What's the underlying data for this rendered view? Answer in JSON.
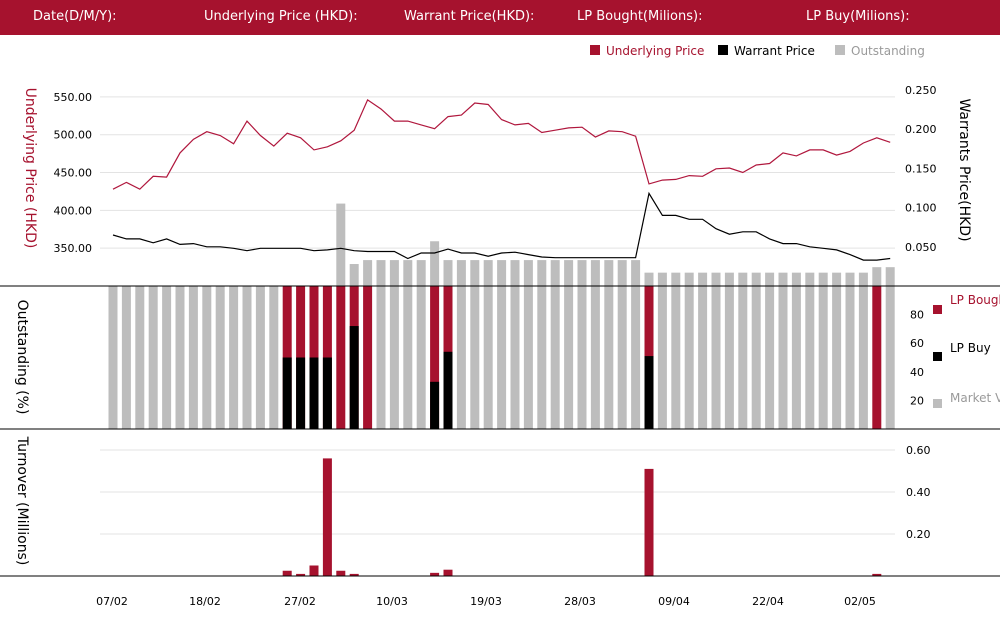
{
  "header": {
    "date_label": "Date(D/M/Y):",
    "underlying_label": "Underlying Price (HKD):",
    "warrant_label": "Warrant  Price(HKD):",
    "lp_bought_label": "LP Bought(Milions):",
    "lp_buy_label": "LP Buy(Milions):"
  },
  "colors": {
    "header_bg": "#a6122e",
    "underlying": "#b0173d",
    "warrant": "#000000",
    "outstanding": "#bdbdbd",
    "lp_bought": "#a6122e",
    "lp_buy": "#000000"
  },
  "chart_data": [
    {
      "type": "line",
      "legend": [
        "Underlying Price",
        "Warrant  Price",
        "Outstanding"
      ],
      "ylabel_left": "Underlying Price (HKD)",
      "ylabel_right": "Warrants  Price(HKD)",
      "ylim_left": [
        300,
        575
      ],
      "ylim_right": [
        0.0,
        0.265
      ],
      "yticks_left": [
        "550.00",
        "500.00",
        "450.00",
        "400.00",
        "350.00"
      ],
      "yticks_right": [
        "0.250",
        "0.200",
        "0.150",
        "0.100",
        "0.050"
      ],
      "series": [
        {
          "name": "Underlying Price",
          "axis": "left",
          "values": [
            428,
            437,
            428,
            445,
            444,
            476,
            494,
            504,
            499,
            488,
            518,
            499,
            485,
            502,
            496,
            480,
            484,
            492,
            506,
            546,
            534,
            518,
            518,
            513,
            508,
            524,
            526,
            542,
            540,
            520,
            513,
            515,
            503,
            506,
            509,
            510,
            497,
            505,
            504,
            498,
            435,
            440,
            441,
            446,
            445,
            455,
            456,
            450,
            460,
            462,
            476,
            472,
            480,
            480,
            473,
            478,
            489,
            496,
            490
          ]
        },
        {
          "name": "Warrant  Price",
          "axis": "right",
          "values": [
            0.065,
            0.06,
            0.06,
            0.055,
            0.06,
            0.053,
            0.054,
            0.05,
            0.05,
            0.048,
            0.045,
            0.048,
            0.048,
            0.048,
            0.048,
            0.045,
            0.046,
            0.048,
            0.045,
            0.044,
            0.044,
            0.044,
            0.035,
            0.042,
            0.042,
            0.047,
            0.042,
            0.042,
            0.038,
            0.042,
            0.043,
            0.04,
            0.037,
            0.036,
            0.036,
            0.036,
            0.036,
            0.036,
            0.036,
            0.036,
            0.118,
            0.09,
            0.09,
            0.085,
            0.085,
            0.073,
            0.066,
            0.069,
            0.069,
            0.06,
            0.054,
            0.054,
            0.05,
            0.048,
            0.046,
            0.04,
            0.033,
            0.033,
            0.035
          ]
        },
        {
          "name": "Outstanding",
          "axis": "right",
          "type": "bar",
          "values": [
            0,
            0,
            0,
            0,
            0,
            0,
            0,
            0,
            0,
            0,
            0,
            0,
            0,
            0,
            0,
            0,
            0,
            0.105,
            0.028,
            0.033,
            0.033,
            0.033,
            0.033,
            0.033,
            0.057,
            0.033,
            0.033,
            0.033,
            0.033,
            0.033,
            0.033,
            0.033,
            0.033,
            0.033,
            0.033,
            0.033,
            0.033,
            0.033,
            0.033,
            0.033,
            0.017,
            0.017,
            0.017,
            0.017,
            0.017,
            0.017,
            0.017,
            0.017,
            0.017,
            0.017,
            0.017,
            0.017,
            0.017,
            0.017,
            0.017,
            0.017,
            0.017,
            0.024,
            0.024
          ]
        }
      ]
    },
    {
      "type": "bar",
      "ylabel": "Outstanding (%)",
      "ylim": [
        0,
        100
      ],
      "yticks": [
        "80",
        "60",
        "40",
        "20"
      ],
      "legend": [
        "LP Bought",
        "LP Buy",
        "Market Volume"
      ],
      "series": [
        {
          "name": "Market Volume",
          "values": [
            100,
            100,
            100,
            100,
            100,
            100,
            100,
            100,
            100,
            100,
            100,
            100,
            100,
            100,
            100,
            100,
            100,
            100,
            100,
            100,
            100,
            100,
            100,
            100,
            100,
            100,
            100,
            100,
            100,
            100,
            100,
            100,
            100,
            100,
            100,
            100,
            100,
            100,
            100,
            100,
            100,
            100,
            100,
            100,
            100,
            100,
            100,
            100,
            100,
            100,
            100,
            100,
            100,
            100,
            100,
            100,
            100,
            100,
            100
          ]
        },
        {
          "name": "LP Bought",
          "values": [
            0,
            0,
            0,
            0,
            0,
            0,
            0,
            0,
            0,
            0,
            0,
            0,
            0,
            100,
            100,
            100,
            100,
            100,
            100,
            100,
            0,
            0,
            0,
            0,
            100,
            100,
            0,
            0,
            0,
            0,
            0,
            0,
            0,
            0,
            0,
            0,
            0,
            0,
            0,
            0,
            100,
            0,
            0,
            0,
            0,
            0,
            0,
            0,
            0,
            0,
            0,
            0,
            0,
            0,
            0,
            0,
            0,
            100,
            0
          ]
        },
        {
          "name": "LP Buy",
          "values": [
            0,
            0,
            0,
            0,
            0,
            0,
            0,
            0,
            0,
            0,
            0,
            0,
            0,
            50,
            50,
            50,
            50,
            0,
            72,
            0,
            0,
            0,
            0,
            0,
            33,
            54,
            0,
            0,
            0,
            0,
            0,
            0,
            0,
            0,
            0,
            0,
            0,
            0,
            0,
            0,
            51,
            0,
            0,
            0,
            0,
            0,
            0,
            0,
            0,
            0,
            0,
            0,
            0,
            0,
            0,
            0,
            0,
            0,
            0
          ]
        }
      ]
    },
    {
      "type": "bar",
      "ylabel": "Turnover (Millions)",
      "ylim": [
        0,
        0.7
      ],
      "yticks": [
        "0.60",
        "0.40",
        "0.20"
      ],
      "x_tick_labels": [
        "07/02",
        "18/02",
        "27/02",
        "10/03",
        "19/03",
        "28/03",
        "09/04",
        "22/04",
        "02/05"
      ],
      "series": [
        {
          "name": "Turnover",
          "values": [
            0,
            0,
            0,
            0,
            0,
            0,
            0,
            0,
            0,
            0,
            0,
            0,
            0,
            0.025,
            0.01,
            0.05,
            0.56,
            0.025,
            0.01,
            0,
            0,
            0,
            0,
            0,
            0.015,
            0.03,
            0,
            0,
            0,
            0,
            0,
            0,
            0,
            0,
            0,
            0,
            0,
            0,
            0,
            0,
            0.51,
            0,
            0,
            0,
            0,
            0,
            0,
            0,
            0,
            0,
            0,
            0,
            0,
            0,
            0,
            0,
            0,
            0.01,
            0
          ]
        }
      ]
    }
  ]
}
